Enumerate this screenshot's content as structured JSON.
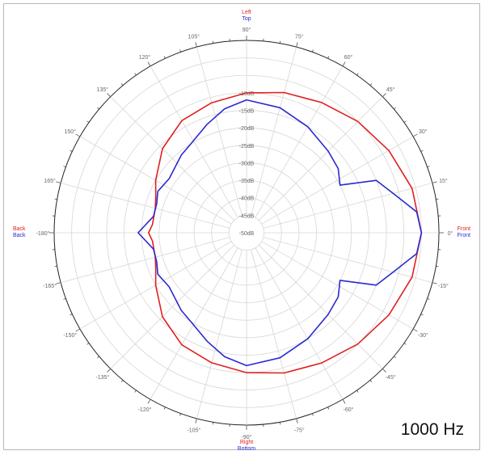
{
  "chart_data": {
    "type": "polar",
    "frequency_label": "1000 Hz",
    "angle_ticks": [
      "90°",
      "75°",
      "60°",
      "45°",
      "30°",
      "15°",
      "0°",
      "-15°",
      "-30°",
      "-45°",
      "-60°",
      "-75°",
      "-90°",
      "-105°",
      "-120°",
      "-135°",
      "-150°",
      "-165°",
      "-180°",
      "165°",
      "150°",
      "135°",
      "120°",
      "105°"
    ],
    "angle_values": [
      90,
      75,
      60,
      45,
      30,
      15,
      0,
      -15,
      -30,
      -45,
      -60,
      -75,
      -90,
      -105,
      -120,
      -135,
      -150,
      -165,
      -180,
      165,
      150,
      135,
      120,
      105
    ],
    "radial_labels": [
      "-10dB",
      "-15dB",
      "-20dB",
      "-25dB",
      "-30dB",
      "-35dB",
      "-40dB",
      "-45dB",
      "-50dB"
    ],
    "radial_values": [
      -10,
      -15,
      -20,
      -25,
      -30,
      -35,
      -40,
      -45,
      -50
    ],
    "rlim": [
      -50,
      5
    ],
    "grid": true,
    "direction_labels": {
      "top": {
        "red": "Left",
        "blue": "Top"
      },
      "bottom": {
        "red": "Right",
        "blue": "Bottom"
      },
      "left": {
        "red": "Back",
        "blue": "Back"
      },
      "right": {
        "red": "Front",
        "blue": "Front"
      }
    },
    "series": [
      {
        "color": "#e02020",
        "points": [
          [
            0,
            0
          ],
          [
            15,
            -1
          ],
          [
            30,
            -3
          ],
          [
            45,
            -5
          ],
          [
            60,
            -7
          ],
          [
            75,
            -8.5
          ],
          [
            90,
            -10
          ],
          [
            105,
            -11.5
          ],
          [
            120,
            -13
          ],
          [
            135,
            -16
          ],
          [
            150,
            -20
          ],
          [
            158,
            -22
          ],
          [
            165,
            -23
          ],
          [
            175,
            -23
          ],
          [
            180,
            -22
          ],
          [
            -175,
            -23
          ],
          [
            -165,
            -23
          ],
          [
            -158,
            -22
          ],
          [
            -150,
            -20
          ],
          [
            -135,
            -16
          ],
          [
            -120,
            -13
          ],
          [
            -105,
            -11.5
          ],
          [
            -90,
            -10
          ],
          [
            -75,
            -8.5
          ],
          [
            -60,
            -7
          ],
          [
            -45,
            -5
          ],
          [
            -30,
            -3
          ],
          [
            -15,
            -1
          ]
        ]
      },
      {
        "color": "#2a2ad0",
        "points": [
          [
            0,
            0
          ],
          [
            7,
            -1
          ],
          [
            14,
            -6
          ],
          [
            22,
            -10
          ],
          [
            27,
            -20
          ],
          [
            35,
            -18
          ],
          [
            45,
            -17
          ],
          [
            60,
            -15
          ],
          [
            75,
            -13
          ],
          [
            90,
            -12
          ],
          [
            100,
            -14
          ],
          [
            110,
            -17
          ],
          [
            122,
            -20
          ],
          [
            130,
            -21
          ],
          [
            145,
            -23
          ],
          [
            155,
            -22
          ],
          [
            162,
            -23
          ],
          [
            170,
            -23
          ],
          [
            180,
            -19
          ],
          [
            -170,
            -23
          ],
          [
            -162,
            -23
          ],
          [
            -155,
            -22
          ],
          [
            -145,
            -23
          ],
          [
            -130,
            -21
          ],
          [
            -122,
            -20
          ],
          [
            -110,
            -17
          ],
          [
            -100,
            -14
          ],
          [
            -90,
            -12
          ],
          [
            -75,
            -13
          ],
          [
            -60,
            -15
          ],
          [
            -45,
            -17
          ],
          [
            -35,
            -18
          ],
          [
            -27,
            -20
          ],
          [
            -22,
            -10
          ],
          [
            -14,
            -6
          ],
          [
            -7,
            -1
          ]
        ]
      }
    ]
  }
}
